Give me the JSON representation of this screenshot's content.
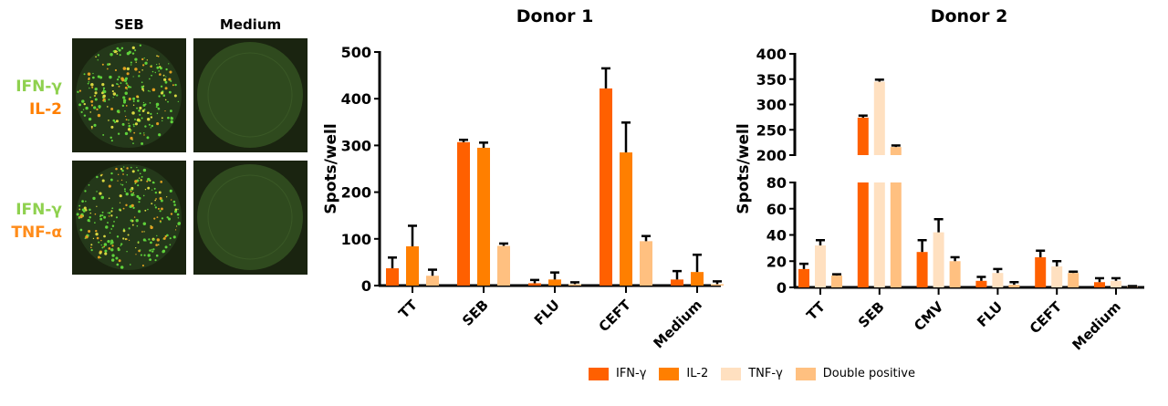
{
  "panel": {
    "columns": [
      "SEB",
      "Medium"
    ],
    "rows": [
      {
        "labels": [
          "IFN-γ",
          "IL-2"
        ],
        "colors": [
          "#8fd14f",
          "#ff7f00"
        ]
      },
      {
        "labels": [
          "IFN-γ",
          "TNF-α"
        ],
        "colors": [
          "#8fd14f",
          "#ff8c1a"
        ]
      }
    ]
  },
  "legend": [
    {
      "label": "IFN-γ",
      "color": "#ff6000"
    },
    {
      "label": "IL-2",
      "color": "#ff7f00"
    },
    {
      "label": "TNF-γ",
      "color": "#ffe0c0"
    },
    {
      "label": "Double positive",
      "color": "#ffc080"
    }
  ],
  "chart_data": [
    {
      "type": "bar",
      "title": "Donor 1",
      "ylabel": "Spots/well",
      "ylim": [
        0,
        500
      ],
      "yticks": [
        0,
        100,
        200,
        300,
        400,
        500
      ],
      "categories": [
        "TT",
        "SEB",
        "FLU",
        "CEFT",
        "Medium"
      ],
      "series": [
        {
          "name": "IFN-γ",
          "color": "#ff6000",
          "values": [
            37,
            307,
            5,
            422,
            13
          ],
          "err": [
            23,
            5,
            7,
            43,
            18
          ]
        },
        {
          "name": "IL-2",
          "color": "#ff7f00",
          "values": [
            84,
            295,
            13,
            285,
            29
          ],
          "err": [
            44,
            11,
            15,
            64,
            37
          ]
        },
        {
          "name": "Double positive",
          "color": "#ffc080",
          "values": [
            21,
            85,
            3,
            95,
            3
          ],
          "err": [
            13,
            5,
            4,
            11,
            6
          ]
        }
      ]
    },
    {
      "type": "bar",
      "title": "Donor 2",
      "ylabel": "Spots/well",
      "ylim": [
        0,
        400
      ],
      "axis_break": [
        80,
        200
      ],
      "yticks_lower": [
        0,
        20,
        40,
        60,
        80
      ],
      "yticks_upper": [
        200,
        250,
        300,
        350,
        400
      ],
      "categories": [
        "TT",
        "SEB",
        "CMV",
        "FLU",
        "CEFT",
        "Medium"
      ],
      "series": [
        {
          "name": "IFN-γ",
          "color": "#ff6000",
          "values": [
            14,
            274,
            27,
            5,
            23,
            4
          ],
          "err": [
            4,
            4,
            9,
            3,
            5,
            3
          ]
        },
        {
          "name": "TNF-γ",
          "color": "#ffe0c0",
          "values": [
            32,
            345,
            42,
            11,
            16,
            5
          ],
          "err": [
            4,
            4,
            10,
            3,
            4,
            2
          ]
        },
        {
          "name": "Double positive",
          "color": "#ffc080",
          "values": [
            9,
            216,
            20,
            2,
            11,
            0.5
          ],
          "err": [
            1,
            3,
            3,
            2,
            1,
            0.5
          ]
        }
      ]
    }
  ]
}
